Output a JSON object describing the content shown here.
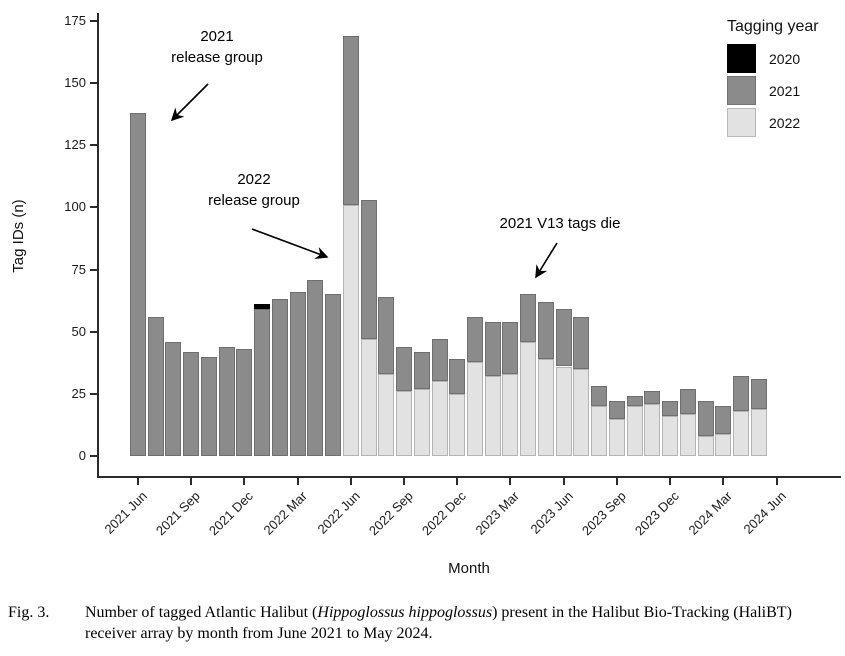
{
  "chart_data": {
    "type": "bar",
    "stacked": true,
    "xlabel": "Month",
    "ylabel": "Tag IDs (n)",
    "ylim": [
      0,
      175
    ],
    "y_ticks": [
      0,
      25,
      50,
      75,
      100,
      125,
      150,
      175
    ],
    "x_tick_labels": [
      "2021 Jun",
      "2021 Sep",
      "2021 Dec",
      "2022 Mar",
      "2022 Jun",
      "2022 Sep",
      "2022 Dec",
      "2023 Mar",
      "2023 Jun",
      "2023 Sep",
      "2023 Dec",
      "2024 Mar",
      "2024 Jun"
    ],
    "grid": "off",
    "legend_title": "Tagging year",
    "legend_position": "top-right",
    "categories": [
      "2021 Jun",
      "2021 Jul",
      "2021 Aug",
      "2021 Sep",
      "2021 Oct",
      "2021 Nov",
      "2021 Dec",
      "2022 Jan",
      "2022 Feb",
      "2022 Mar",
      "2022 Apr",
      "2022 May",
      "2022 Jun",
      "2022 Jul",
      "2022 Aug",
      "2022 Sep",
      "2022 Oct",
      "2022 Nov",
      "2022 Dec",
      "2023 Jan",
      "2023 Feb",
      "2023 Mar",
      "2023 Apr",
      "2023 May",
      "2023 Jun",
      "2023 Jul",
      "2023 Aug",
      "2023 Sep",
      "2023 Oct",
      "2023 Nov",
      "2023 Dec",
      "2024 Jan",
      "2024 Feb",
      "2024 Mar",
      "2024 Apr",
      "2024 May"
    ],
    "series": [
      {
        "name": "2020",
        "color": "#000000",
        "values": [
          0,
          0,
          0,
          0,
          0,
          0,
          0,
          2,
          0,
          0,
          0,
          0,
          0,
          0,
          0,
          0,
          0,
          0,
          0,
          0,
          0,
          0,
          0,
          0,
          0,
          0,
          0,
          0,
          0,
          0,
          0,
          0,
          0,
          0,
          0,
          0
        ]
      },
      {
        "name": "2021",
        "color": "#8b8b8b",
        "values": [
          138,
          56,
          46,
          42,
          40,
          44,
          43,
          59,
          63,
          66,
          71,
          65,
          68,
          56,
          31,
          18,
          15,
          17,
          14,
          18,
          22,
          21,
          19,
          23,
          23,
          21,
          8,
          7,
          4,
          5,
          6,
          10,
          14,
          11,
          14,
          12
        ]
      },
      {
        "name": "2022",
        "color": "#e2e2e2",
        "values": [
          0,
          0,
          0,
          0,
          0,
          0,
          0,
          0,
          0,
          0,
          0,
          0,
          101,
          47,
          33,
          26,
          27,
          30,
          25,
          38,
          32,
          33,
          46,
          39,
          36,
          35,
          20,
          15,
          20,
          21,
          16,
          17,
          8,
          9,
          18,
          19
        ]
      }
    ],
    "stack_order_bottom_to_top": [
      "2022",
      "2021",
      "2020"
    ],
    "annotations": [
      {
        "text": "2021 release group",
        "lines": [
          "2021",
          "release group"
        ]
      },
      {
        "text": "2022 release group",
        "lines": [
          "2022",
          "release group"
        ]
      },
      {
        "text": "2021 V13 tags die",
        "lines": [
          "2021 V13 tags die"
        ]
      }
    ]
  },
  "caption": {
    "label": "Fig. 3.",
    "text_before_italic": "Number of tagged Atlantic Halibut (",
    "italic": "Hippoglossus hippoglossus",
    "text_after_italic": ") present in the Halibut Bio-Tracking (HaliBT) receiver array by month from June 2021 to May 2024."
  }
}
